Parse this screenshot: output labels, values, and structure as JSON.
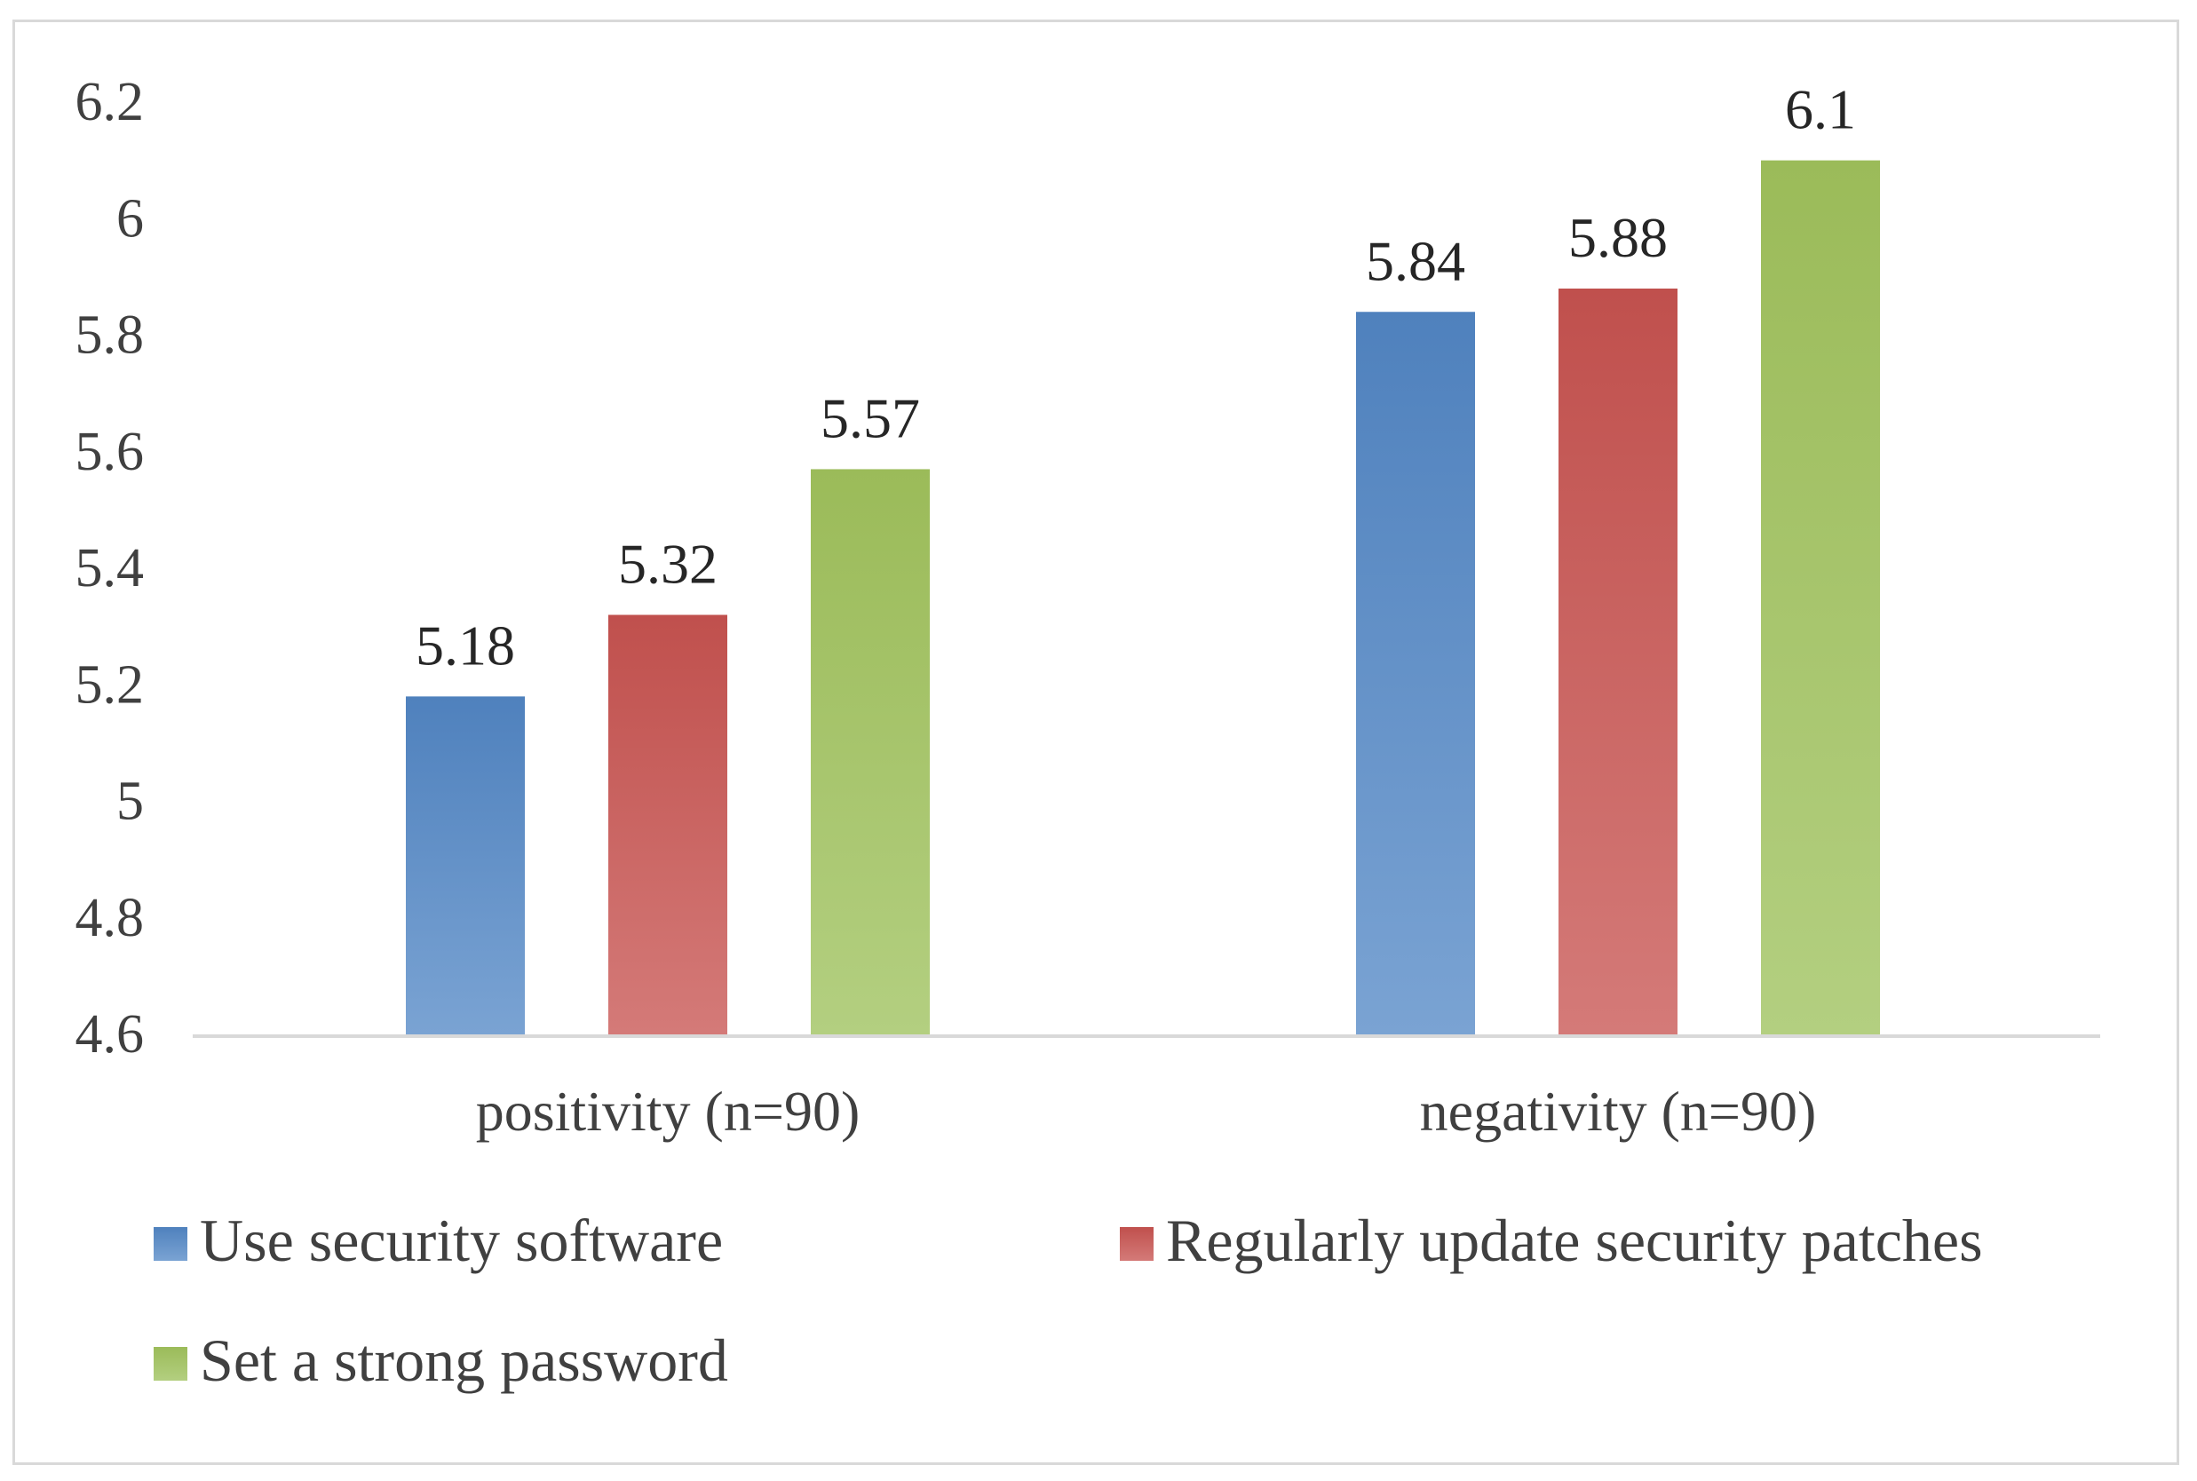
{
  "chart_data": {
    "type": "bar",
    "title": "",
    "xlabel": "",
    "ylabel": "",
    "categories": [
      "positivity (n=90)",
      "negativity (n=90)"
    ],
    "series": [
      {
        "name": "Use security software",
        "values": [
          5.18,
          5.84
        ],
        "color": "#4f81bd",
        "color_light": "#7aa3d3"
      },
      {
        "name": "Regularly update security patches",
        "values": [
          5.32,
          5.88
        ],
        "color": "#c0504d",
        "color_light": "#d47a78"
      },
      {
        "name": "Set a strong password",
        "values": [
          5.57,
          6.1
        ],
        "color": "#9bbb59",
        "color_light": "#b3cf80"
      }
    ],
    "data_labels": [
      [
        "5.18",
        "5.84"
      ],
      [
        "5.32",
        "5.88"
      ],
      [
        "5.57",
        "6.1"
      ]
    ],
    "y_ticks": [
      4.6,
      4.8,
      5,
      5.2,
      5.4,
      5.6,
      5.8,
      6,
      6.2
    ],
    "y_tick_labels": [
      "4.6",
      "4.8",
      "5",
      "5.2",
      "5.4",
      "5.6",
      "5.8",
      "6",
      "6.2"
    ],
    "ylim": [
      4.6,
      6.2
    ],
    "grid": false,
    "legend_position": "bottom",
    "axis_color": "#d9d9d9"
  }
}
